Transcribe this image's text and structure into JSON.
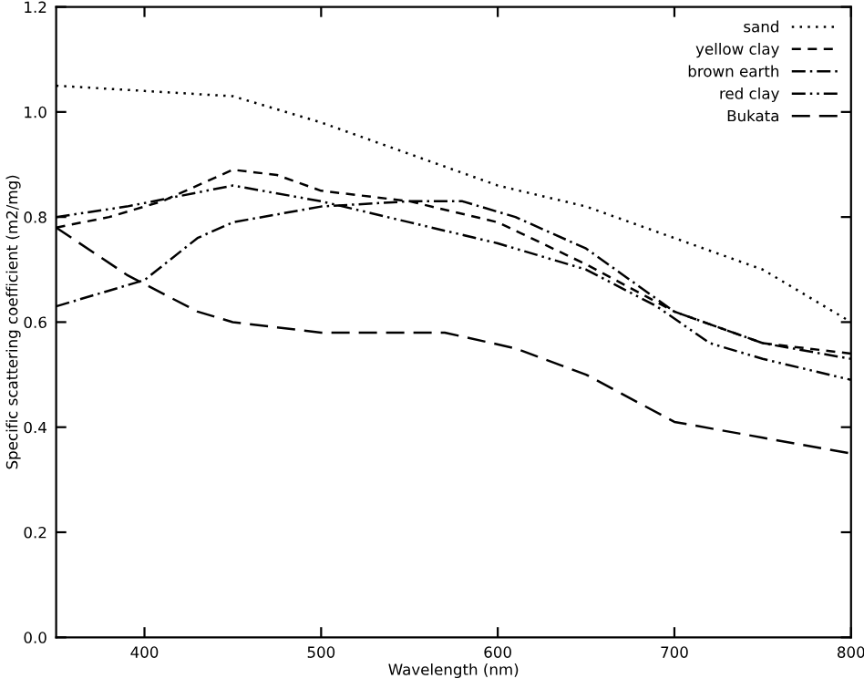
{
  "chart_data": {
    "type": "line",
    "xlabel": "Wavelength (nm)",
    "ylabel": "Specific scattering coefficient (m2/mg)",
    "xlim": [
      350,
      800
    ],
    "ylim": [
      0,
      1.2
    ],
    "xticks": [
      400,
      500,
      600,
      700,
      {
        "value": 800,
        "label": "800"
      }
    ],
    "yticks": [
      {
        "value": 0,
        "label": "0.0"
      },
      {
        "value": 0.2,
        "label": "0.2"
      },
      {
        "value": 0.4,
        "label": "0.4"
      },
      {
        "value": 0.6,
        "label": "0.6"
      },
      {
        "value": 0.8,
        "label": "0.8"
      },
      {
        "value": 1.0,
        "label": "1.0"
      },
      {
        "value": 1.2,
        "label": "1.2"
      }
    ],
    "grid": false,
    "legend": "top right",
    "marker": "none",
    "series": [
      {
        "name": "sand",
        "color": "#000000",
        "line_style": "dotted",
        "x": [
          350,
          400,
          450,
          500,
          550,
          600,
          650,
          700,
          750,
          800
        ],
        "values": [
          1.05,
          1.04,
          1.03,
          0.98,
          0.92,
          0.86,
          0.82,
          0.76,
          0.7,
          0.6
        ]
      },
      {
        "name": "yellow clay",
        "color": "#000000",
        "line_style": "dashed",
        "x": [
          350,
          380,
          410,
          450,
          475,
          500,
          550,
          600,
          650,
          700,
          750,
          800
        ],
        "values": [
          0.78,
          0.8,
          0.83,
          0.89,
          0.88,
          0.85,
          0.83,
          0.79,
          0.71,
          0.62,
          0.56,
          0.54
        ]
      },
      {
        "name": "brown earth",
        "color": "#000000",
        "line_style": "dashdot",
        "x": [
          350,
          400,
          430,
          450,
          500,
          550,
          580,
          610,
          650,
          700,
          750,
          800
        ],
        "values": [
          0.63,
          0.68,
          0.76,
          0.79,
          0.82,
          0.83,
          0.83,
          0.8,
          0.74,
          0.62,
          0.56,
          0.53
        ]
      },
      {
        "name": "red clay",
        "color": "#000000",
        "line_style": "dashdotdot",
        "x": [
          350,
          390,
          450,
          500,
          550,
          600,
          650,
          690,
          720,
          750,
          800
        ],
        "values": [
          0.8,
          0.82,
          0.86,
          0.83,
          0.79,
          0.75,
          0.7,
          0.63,
          0.56,
          0.53,
          0.49
        ]
      },
      {
        "name": "Bukata",
        "color": "#000000",
        "line_style": "longdash",
        "x": [
          350,
          390,
          430,
          450,
          500,
          570,
          610,
          650,
          700,
          750,
          800
        ],
        "values": [
          0.78,
          0.69,
          0.62,
          0.6,
          0.58,
          0.58,
          0.55,
          0.5,
          0.41,
          0.38,
          0.35
        ]
      }
    ]
  }
}
